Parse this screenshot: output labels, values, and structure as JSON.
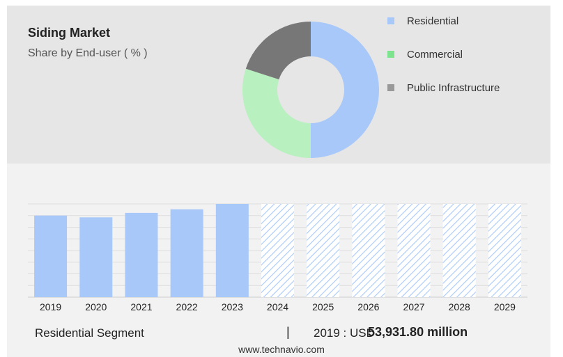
{
  "header": {
    "title": "Siding Market",
    "subtitle": "Share by End-user ( % )"
  },
  "legend": [
    {
      "label": "Residential",
      "color": "#a8c8fa"
    },
    {
      "label": "Commercial",
      "color": "#7de38f"
    },
    {
      "label": "Public Infrastructure",
      "color": "#999999"
    }
  ],
  "chart_data": [
    {
      "type": "pie",
      "title": "Siding Market",
      "subtitle": "Share by End-user ( % )",
      "categories": [
        "Residential",
        "Commercial",
        "Public Infrastructure"
      ],
      "values": [
        50,
        30,
        20
      ],
      "colors": [
        "#a8c8fa",
        "#b8f0bf",
        "#777777"
      ]
    },
    {
      "type": "bar",
      "categories": [
        "2019",
        "2020",
        "2021",
        "2022",
        "2023",
        "2024",
        "2025",
        "2026",
        "2027",
        "2028",
        "2029"
      ],
      "values": [
        91,
        89,
        94,
        98,
        104,
        104,
        104,
        104,
        104,
        104,
        104
      ],
      "ylim": [
        0,
        104
      ],
      "forecast_from": "2024",
      "grid": true,
      "bar_color": "#a8c8fa"
    }
  ],
  "footer": {
    "segment": "Residential Segment",
    "separator": "|",
    "year_label": "2019 : USD",
    "value": "53,931.80 million",
    "website": "www.technavio.com"
  }
}
